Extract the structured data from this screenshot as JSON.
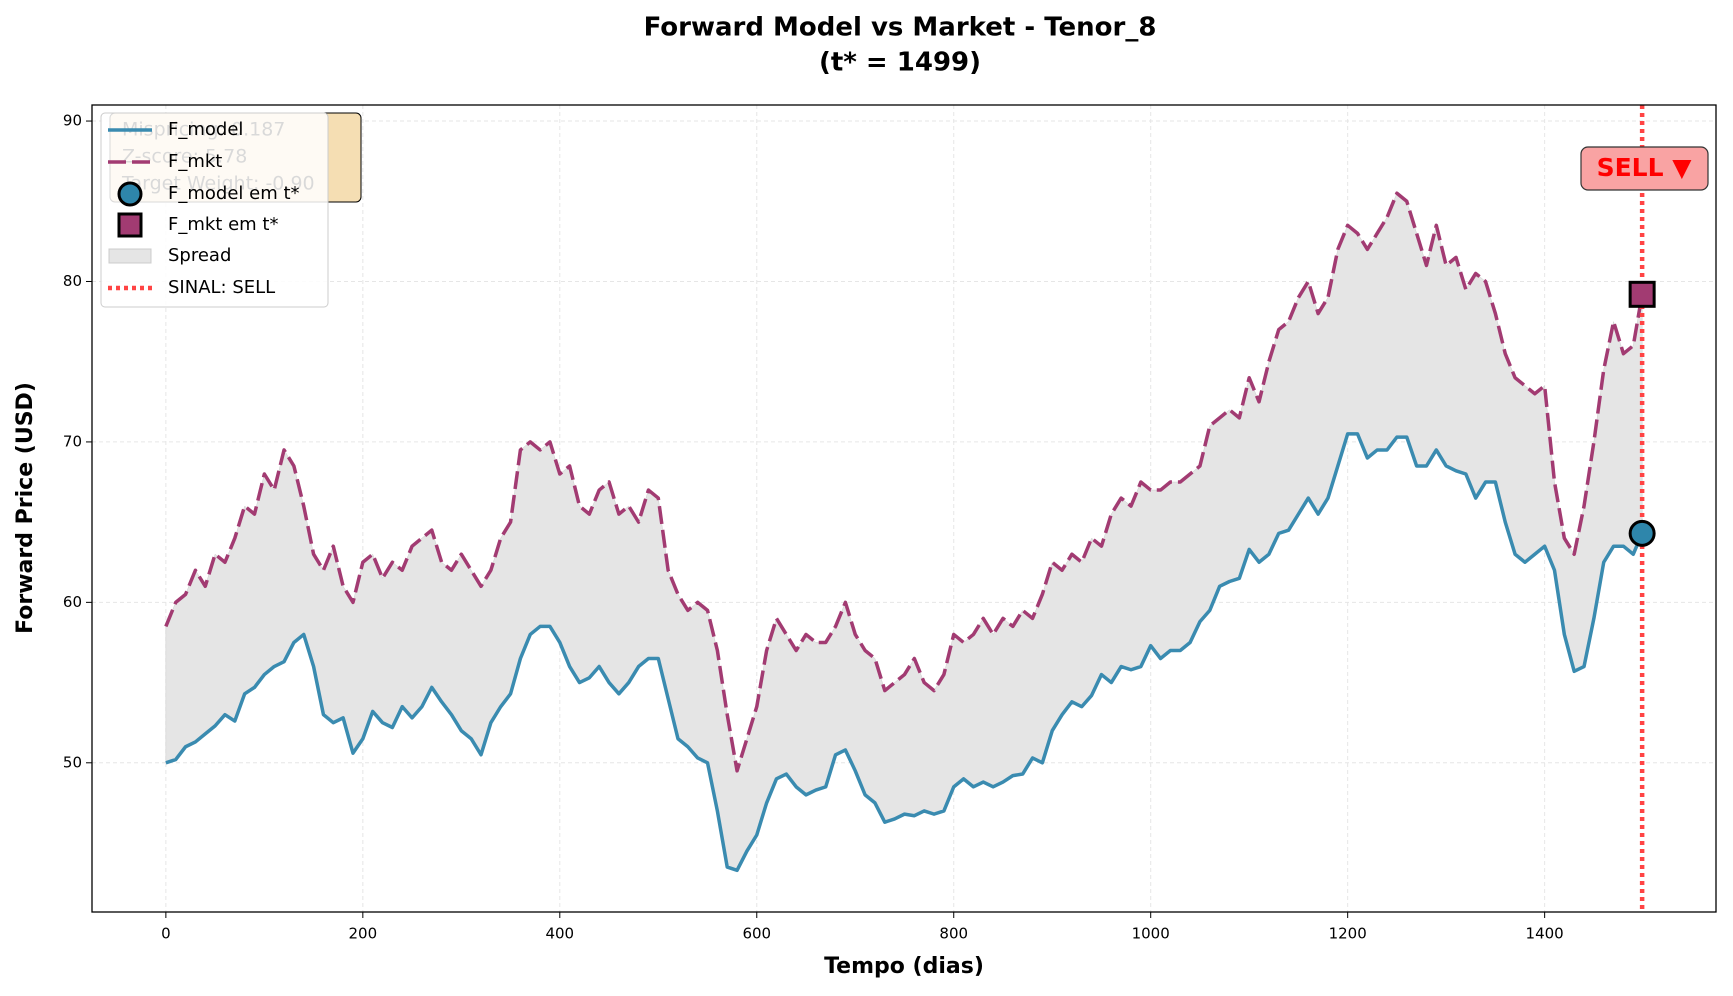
{
  "chart_data": {
    "type": "line",
    "title": "Forward Model vs Market - Tenor_8",
    "subtitle": "(t* = 1499)",
    "x_label": "Tempo (dias)",
    "y_label": "Forward Price (USD)",
    "xlim": [
      -75,
      1574
    ],
    "ylim": [
      40.7,
      91.0
    ],
    "xticks": [
      0,
      200,
      400,
      600,
      800,
      1000,
      1200,
      1400
    ],
    "yticks": [
      50,
      60,
      70,
      80,
      90
    ],
    "grid": true,
    "legend": "upper left",
    "x": [
      0,
      10,
      20,
      30,
      40,
      50,
      60,
      70,
      80,
      90,
      100,
      110,
      120,
      130,
      140,
      150,
      160,
      170,
      180,
      190,
      200,
      210,
      220,
      230,
      240,
      250,
      260,
      270,
      280,
      290,
      300,
      310,
      320,
      330,
      340,
      350,
      360,
      370,
      380,
      390,
      400,
      410,
      420,
      430,
      440,
      450,
      460,
      470,
      480,
      490,
      500,
      510,
      520,
      530,
      540,
      550,
      560,
      570,
      580,
      590,
      600,
      610,
      620,
      630,
      640,
      650,
      660,
      670,
      680,
      690,
      700,
      710,
      720,
      730,
      740,
      750,
      760,
      770,
      780,
      790,
      800,
      810,
      820,
      830,
      840,
      850,
      860,
      870,
      880,
      890,
      900,
      910,
      920,
      930,
      940,
      950,
      960,
      970,
      980,
      990,
      1000,
      1010,
      1020,
      1030,
      1040,
      1050,
      1060,
      1070,
      1080,
      1090,
      1100,
      1110,
      1120,
      1130,
      1140,
      1150,
      1160,
      1170,
      1180,
      1190,
      1200,
      1210,
      1220,
      1230,
      1240,
      1250,
      1260,
      1270,
      1280,
      1290,
      1300,
      1310,
      1320,
      1330,
      1340,
      1350,
      1360,
      1370,
      1380,
      1390,
      1400,
      1410,
      1420,
      1430,
      1440,
      1450,
      1460,
      1470,
      1480,
      1490,
      1499
    ],
    "series": [
      {
        "name": "F_model",
        "color": "#3a8bb0",
        "dash": false,
        "values": [
          50,
          50.2,
          51,
          51.3,
          51.8,
          52.3,
          53,
          52.6,
          54.3,
          54.7,
          55.5,
          56,
          56.3,
          57.5,
          58,
          56,
          53,
          52.5,
          52.8,
          50.6,
          51.5,
          53.2,
          52.5,
          52.2,
          53.5,
          52.8,
          53.5,
          54.7,
          53.8,
          53,
          52,
          51.5,
          50.5,
          52.5,
          53.5,
          54.3,
          56.5,
          58,
          58.5,
          58.5,
          57.5,
          56,
          55,
          55.3,
          56,
          55,
          54.3,
          55,
          56,
          56.5,
          56.5,
          54,
          51.5,
          51,
          50.3,
          50,
          47,
          43.5,
          43.3,
          44.5,
          45.5,
          47.5,
          49,
          49.3,
          48.5,
          48,
          48.3,
          48.5,
          50.5,
          50.8,
          49.5,
          48,
          47.5,
          46.3,
          46.5,
          46.8,
          46.7,
          47,
          46.8,
          47,
          48.5,
          49,
          48.5,
          48.8,
          48.5,
          48.8,
          49.2,
          49.3,
          50.3,
          50,
          52,
          53,
          53.8,
          53.5,
          54.2,
          55.5,
          55,
          56,
          55.8,
          56,
          57.3,
          56.5,
          57,
          57,
          57.5,
          58.8,
          59.5,
          61,
          61.3,
          61.5,
          63.3,
          62.5,
          63,
          64.3,
          64.5,
          65.5,
          66.5,
          65.5,
          66.5,
          68.5,
          70.5,
          70.5,
          69,
          69.5,
          69.5,
          70.3,
          70.3,
          68.5,
          68.5,
          69.5,
          68.5,
          68.2,
          68,
          66.5,
          67.5,
          67.5,
          65,
          63,
          62.5,
          63,
          63.5,
          62,
          58,
          55.7,
          56,
          59,
          62.5,
          63.5,
          63.5,
          63,
          64.3
        ]
      },
      {
        "name": "F_mkt",
        "color": "#a23b72",
        "dash": true,
        "values": [
          58.5,
          60,
          60.5,
          62,
          61,
          63,
          62.5,
          64,
          66,
          65.5,
          68,
          67,
          69.5,
          68.5,
          66,
          63,
          62,
          63.5,
          61,
          60,
          62.5,
          63,
          61.5,
          62.5,
          62,
          63.5,
          64,
          64.5,
          62.5,
          62,
          63,
          62,
          61,
          62,
          64,
          65,
          69.5,
          70,
          69.5,
          70,
          68,
          68.5,
          66,
          65.5,
          67,
          67.5,
          65.5,
          66,
          65,
          67,
          66.5,
          62,
          60.5,
          59.5,
          60,
          59.5,
          57,
          53,
          49.5,
          51.5,
          53.5,
          57,
          59,
          58,
          57,
          58,
          57.5,
          57.5,
          58.5,
          60,
          58,
          57,
          56.5,
          54.5,
          55,
          55.5,
          56.5,
          55,
          54.5,
          55.5,
          58,
          57.5,
          58,
          59,
          58,
          59,
          58.5,
          59.5,
          59,
          60.5,
          62.5,
          62,
          63,
          62.5,
          64,
          63.5,
          65.5,
          66.5,
          66,
          67.5,
          67,
          67,
          67.5,
          67.5,
          68,
          68.5,
          71,
          71.5,
          72,
          71.5,
          74,
          72.5,
          75,
          77,
          77.5,
          79,
          80,
          78,
          79,
          82,
          83.5,
          83,
          82,
          83,
          84,
          85.5,
          85,
          83,
          81,
          83.5,
          81,
          81.5,
          79.5,
          80.5,
          80,
          78,
          75.5,
          74,
          73.5,
          73,
          73.5,
          67.5,
          64,
          63,
          66,
          70,
          74.5,
          77.5,
          75.5,
          76,
          79.2
        ]
      }
    ],
    "markers": [
      {
        "name": "F_model em t*",
        "shape": "circle",
        "color": "#2e86ab",
        "x": 1499,
        "value": 64.3
      },
      {
        "name": "F_mkt em t*",
        "shape": "square",
        "color": "#a23b72",
        "x": 1499,
        "value": 79.2
      }
    ],
    "spread": {
      "name": "Spread",
      "color": "#e5e5e5"
    },
    "signal": {
      "name": "SINAL: SELL",
      "x": 1499,
      "color": "#ff4444",
      "annotation": "SELL ▼"
    },
    "info_box": [
      "Mispricing: 0.187",
      "Z-score: 5.78",
      "Target Weight: -0.90"
    ]
  }
}
